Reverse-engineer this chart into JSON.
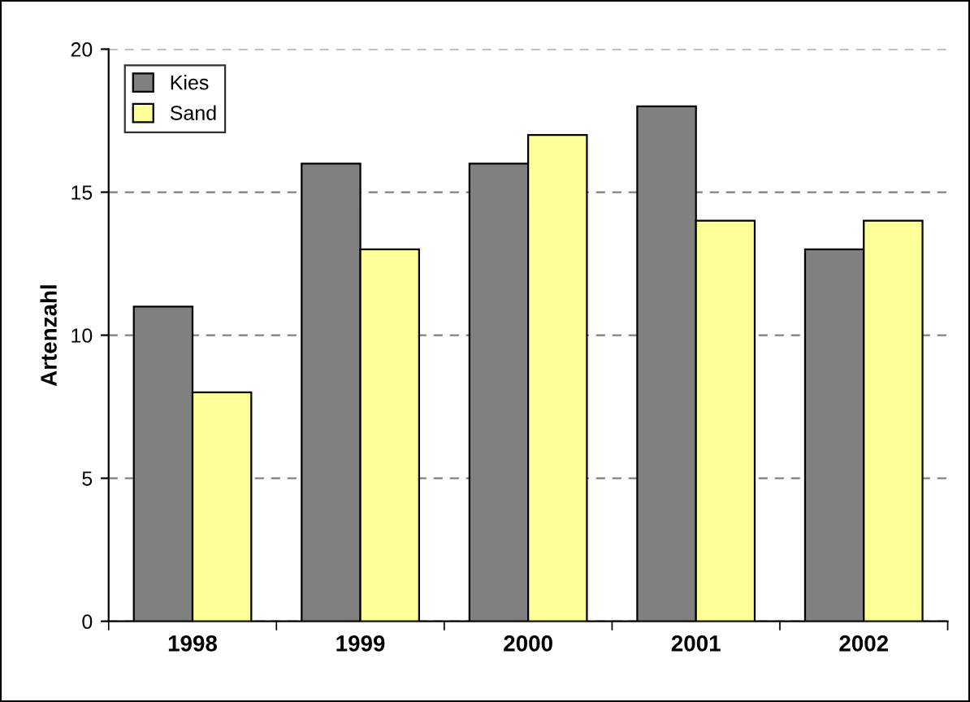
{
  "chart_data": {
    "type": "bar",
    "ylabel": "Artenzahl",
    "categories": [
      "1998",
      "1999",
      "2000",
      "2001",
      "2002"
    ],
    "series": [
      {
        "name": "Kies",
        "color": "#808080",
        "values": [
          11,
          16,
          16,
          18,
          13
        ]
      },
      {
        "name": "Sand",
        "color": "#ffff99",
        "values": [
          8,
          13,
          17,
          14,
          14
        ]
      }
    ],
    "ylim": [
      0,
      20
    ],
    "yticks": [
      0,
      5,
      10,
      15,
      20
    ],
    "grid": "y",
    "legend": "top left"
  }
}
